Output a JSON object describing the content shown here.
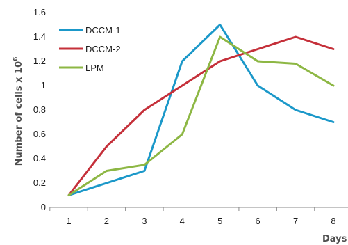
{
  "chart_data": {
    "type": "line",
    "title": "",
    "xlabel": "Days",
    "ylabel": "Number of cells x 10",
    "ylabel_superscript": "6",
    "x": [
      1,
      2,
      3,
      4,
      5,
      6,
      7,
      8
    ],
    "xlim": [
      1,
      8
    ],
    "ylim": [
      0,
      1.6
    ],
    "y_ticks": [
      "0",
      "0.2",
      "0.4",
      "0.6",
      "0.8",
      "1",
      "1.2",
      "1.4",
      "1.6"
    ],
    "x_ticks": [
      "1",
      "2",
      "3",
      "4",
      "5",
      "6",
      "7",
      "8"
    ],
    "grid": false,
    "legend_position": "top-left",
    "series": [
      {
        "name": "DCCM-1",
        "color": "#1b98c9",
        "values": [
          0.1,
          0.2,
          0.3,
          1.2,
          1.5,
          1.0,
          0.8,
          0.7
        ]
      },
      {
        "name": "DCCM-2",
        "color": "#c5303a",
        "values": [
          0.1,
          0.5,
          0.8,
          1.0,
          1.2,
          1.3,
          1.4,
          1.3
        ]
      },
      {
        "name": "LPM",
        "color": "#8db744",
        "values": [
          0.1,
          0.3,
          0.35,
          0.6,
          1.4,
          1.2,
          1.18,
          1.0
        ]
      }
    ]
  }
}
